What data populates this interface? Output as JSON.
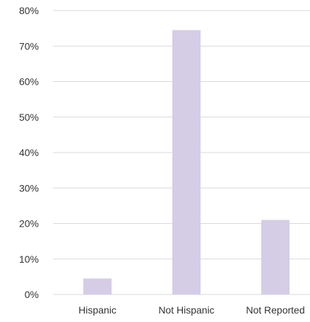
{
  "chart_data": {
    "type": "bar",
    "title": "",
    "xlabel": "",
    "ylabel": "",
    "categories": [
      "Hispanic",
      "Not Hispanic",
      "Not Reported"
    ],
    "values": [
      4.5,
      74.5,
      21
    ],
    "unit": "%",
    "ylim": [
      0,
      80
    ],
    "yticks": [
      0,
      10,
      20,
      30,
      40,
      50,
      60,
      70,
      80
    ],
    "ytick_labels": [
      "0%",
      "10%",
      "20%",
      "30%",
      "40%",
      "50%",
      "60%",
      "70%",
      "80%"
    ],
    "grid": true,
    "legend": "none",
    "colors": {
      "bar": "#d5cde6",
      "grid": "#d9d9d9",
      "text": "#333333"
    }
  }
}
